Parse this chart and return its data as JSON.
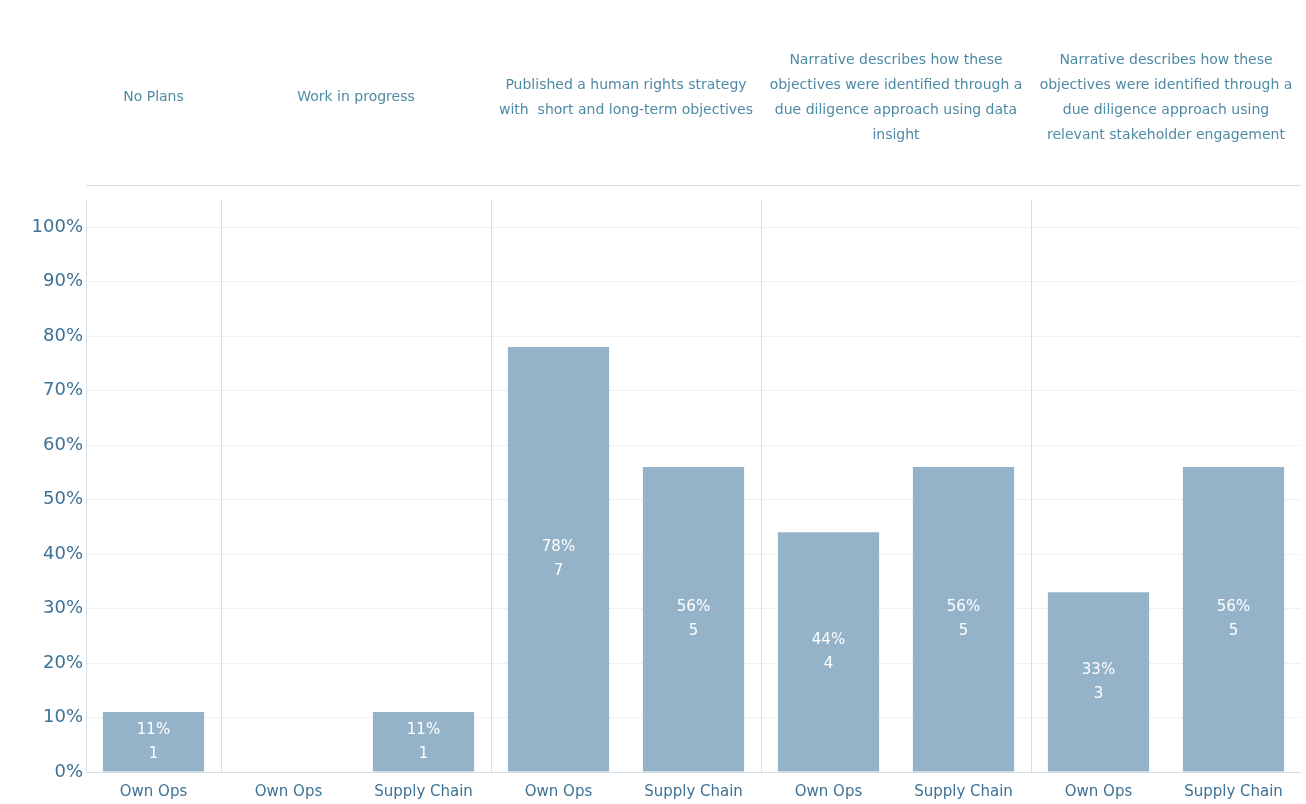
{
  "chart_data": [
    {
      "type": "bar",
      "title": "No Plans",
      "categories": [
        "Own Ops"
      ],
      "values": [
        11
      ],
      "value_labels": [
        "11%\n1"
      ],
      "color": "#95b3c8",
      "ylim": [
        0,
        105
      ],
      "yticks": [
        {
          "value": 0,
          "label": "0%"
        },
        {
          "value": 10,
          "label": "10%"
        },
        {
          "value": 20,
          "label": "20%"
        },
        {
          "value": 30,
          "label": "30%"
        },
        {
          "value": 40,
          "label": "40%"
        },
        {
          "value": 50,
          "label": "50%"
        },
        {
          "value": 60,
          "label": "60%"
        },
        {
          "value": 70,
          "label": "70%"
        },
        {
          "value": 80,
          "label": "80%"
        },
        {
          "value": 90,
          "label": "90%"
        },
        {
          "value": 100,
          "label": "100%"
        }
      ],
      "grid": "y",
      "legend": false
    },
    {
      "type": "bar",
      "title": "Work in progress",
      "categories": [
        "Own Ops",
        "Supply Chain"
      ],
      "values": [
        0,
        11
      ],
      "value_labels": [
        null,
        "11%\n1"
      ],
      "color": "#95b3c8",
      "ylim": [
        0,
        105
      ],
      "yticks": [
        0,
        10,
        20,
        30,
        40,
        50,
        60,
        70,
        80,
        90,
        100
      ],
      "grid": "y",
      "legend": false,
      "tick_labels": "x"
    },
    {
      "type": "bar",
      "title": "Published a human rights strategy with  short and long-term objectives",
      "categories": [
        "Own Ops",
        "Supply Chain"
      ],
      "values": [
        78,
        56
      ],
      "value_labels": [
        "78%\n7",
        "56%\n5"
      ],
      "color": "#95b3c8",
      "ylim": [
        0,
        105
      ],
      "yticks": [
        0,
        10,
        20,
        30,
        40,
        50,
        60,
        70,
        80,
        90,
        100
      ],
      "grid": "y",
      "legend": false,
      "tick_labels": "x"
    },
    {
      "type": "bar",
      "title": "Narrative describes how these objectives were identified through a due diligence approach using data insight",
      "categories": [
        "Own Ops",
        "Supply Chain"
      ],
      "values": [
        44,
        56
      ],
      "value_labels": [
        "44%\n4",
        "56%\n5"
      ],
      "color": "#95b3c8",
      "ylim": [
        0,
        105
      ],
      "yticks": [
        0,
        10,
        20,
        30,
        40,
        50,
        60,
        70,
        80,
        90,
        100
      ],
      "grid": "y",
      "legend": false,
      "tick_labels": "x"
    },
    {
      "type": "bar",
      "title": "Narrative describes how these objectives were identified through a due diligence approach using relevant stakeholder engagement",
      "categories": [
        "Own Ops",
        "Supply Chain"
      ],
      "values": [
        33,
        56
      ],
      "value_labels": [
        "33%\n3",
        "56%\n5"
      ],
      "color": "#95b3c8",
      "ylim": [
        0,
        105
      ],
      "yticks": [
        0,
        10,
        20,
        30,
        40,
        50,
        60,
        70,
        80,
        90,
        100
      ],
      "grid": "y",
      "legend": false,
      "tick_labels": "x"
    }
  ]
}
